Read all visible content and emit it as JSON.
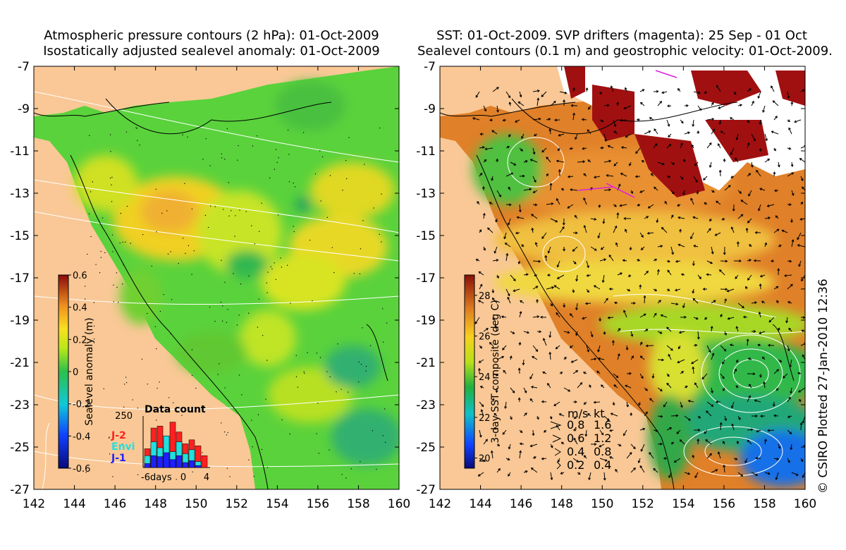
{
  "left_panel": {
    "title_line1": "Atmospheric pressure contours (2 hPa): 01-Oct-2009",
    "title_line2": "Isostatically adjusted sealevel anomaly: 01-Oct-2009",
    "x_ticks": [
      "142",
      "144",
      "146",
      "148",
      "150",
      "152",
      "154",
      "156",
      "158",
      "160"
    ],
    "y_ticks": [
      "-7",
      "-9",
      "-11",
      "-13",
      "-15",
      "-17",
      "-19",
      "-21",
      "-23",
      "-25",
      "-27"
    ],
    "colorbar": {
      "label": "Sealevel anomaly (m)",
      "ticks": [
        "0.6",
        "0.4",
        "0.2",
        "0",
        "-0.2",
        "-0.4",
        "-0.6"
      ],
      "range": [
        -0.6,
        0.6
      ]
    },
    "data_count": {
      "title": "Data count",
      "y_max_label": "250",
      "x_labels": [
        "-6days",
        "0",
        "4"
      ],
      "legend": [
        {
          "label": "J-2",
          "color": "#ff2020"
        },
        {
          "label": "Envi",
          "color": "#20e0e0"
        },
        {
          "label": "J-1",
          "color": "#2020ff"
        }
      ],
      "bars": [
        {
          "j1": 20,
          "envi": 60,
          "j2": 95
        },
        {
          "j1": 60,
          "envi": 130,
          "j2": 200
        },
        {
          "j1": 55,
          "envi": 100,
          "j2": 210
        },
        {
          "j1": 75,
          "envi": 160,
          "j2": 160
        },
        {
          "j1": 40,
          "envi": 80,
          "j2": 230
        },
        {
          "j1": 60,
          "envi": 130,
          "j2": 180
        },
        {
          "j1": 25,
          "envi": 70,
          "j2": 120
        },
        {
          "j1": 35,
          "envi": 90,
          "j2": 140
        },
        {
          "j1": 10,
          "envi": 30,
          "j2": 110
        },
        {
          "j1": 0,
          "envi": 0,
          "j2": 60
        }
      ]
    }
  },
  "right_panel": {
    "title_line1": "SST: 01-Oct-2009. SVP drifters (magenta): 25 Sep - 01 Oct",
    "title_line2": "Sealevel contours (0.1 m) and geostrophic velocity: 01-Oct-2009.",
    "x_ticks": [
      "142",
      "144",
      "146",
      "148",
      "150",
      "152",
      "154",
      "156",
      "158",
      "160"
    ],
    "y_ticks": [
      "-7",
      "-9",
      "-11",
      "-13",
      "-15",
      "-17",
      "-19",
      "-21",
      "-23",
      "-25",
      "-27"
    ],
    "colorbar": {
      "label": "3-day SST composite (deg C)",
      "ticks": [
        "28",
        "26",
        "24",
        "22",
        "20"
      ],
      "range": [
        19.5,
        29
      ]
    },
    "velocity_legend": {
      "header_ms": "m/s",
      "header_kt": "kt",
      "rows": [
        {
          "ms": "0.8",
          "kt": "1.6"
        },
        {
          "ms": "0.6",
          "kt": "1.2"
        },
        {
          "ms": "0.4",
          "kt": "0.8"
        },
        {
          "ms": "0.2",
          "kt": "0.4"
        }
      ]
    }
  },
  "copyright": "© CSIRO Plotted 27-Jan-2010 12:36",
  "colors": {
    "land": "#f9c896",
    "ocean_green": "#5ad23c",
    "warm_orange": "#f0a030",
    "cloud": "#ffffff",
    "dark_red": "#a01010"
  }
}
